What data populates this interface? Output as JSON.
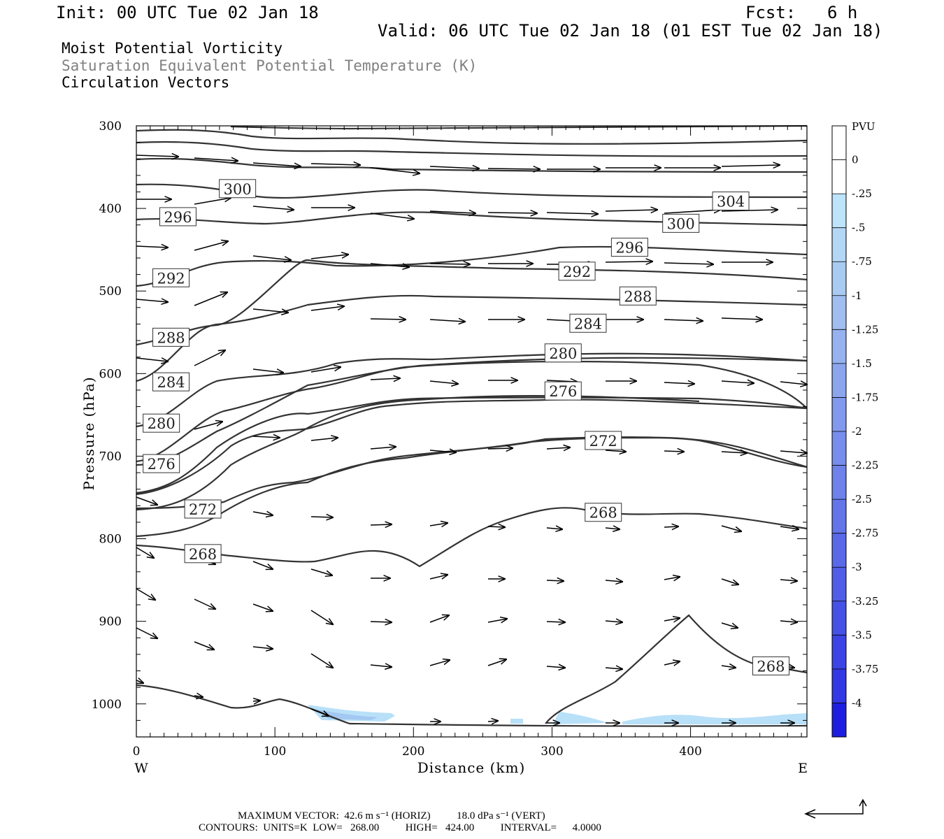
{
  "header": {
    "init": "Init: 00 UTC Tue 02 Jan 18",
    "fcst_label": "Fcst:",
    "fcst_value": "6 h",
    "valid": "Valid: 06 UTC Tue 02 Jan 18 (01 EST Tue 02 Jan 18)"
  },
  "titles": {
    "line1": "Moist Potential Vorticity",
    "line2": "Saturation Equivalent Potential Temperature (K)",
    "line3": "Circulation Vectors"
  },
  "colors": {
    "contour": "#333333",
    "pv_fill_light": "#b8e0f8",
    "pv_fill_mid": "#9fc4f0"
  },
  "chart_data": {
    "type": "cross-section",
    "xlabel": "Distance (km)",
    "ylabel": "Pressure (hPa)",
    "xlim": [
      0,
      484
    ],
    "ylim": [
      1040,
      300
    ],
    "x_ticks": [
      0,
      100,
      200,
      300,
      400
    ],
    "y_ticks": [
      300,
      400,
      500,
      600,
      700,
      800,
      900,
      1000
    ],
    "x_left_label": "W",
    "x_right_label": "E",
    "contour_labels": [
      {
        "text": "300",
        "x": 73,
        "p": 376
      },
      {
        "text": "296",
        "x": 30,
        "p": 410
      },
      {
        "text": "304",
        "x": 429,
        "p": 391
      },
      {
        "text": "300",
        "x": 393,
        "p": 418
      },
      {
        "text": "296",
        "x": 356,
        "p": 447
      },
      {
        "text": "292",
        "x": 25,
        "p": 484
      },
      {
        "text": "292",
        "x": 318,
        "p": 476
      },
      {
        "text": "288",
        "x": 362,
        "p": 506
      },
      {
        "text": "284",
        "x": 326,
        "p": 539
      },
      {
        "text": "288",
        "x": 25,
        "p": 556
      },
      {
        "text": "280",
        "x": 308,
        "p": 575
      },
      {
        "text": "284",
        "x": 25,
        "p": 610
      },
      {
        "text": "276",
        "x": 308,
        "p": 621
      },
      {
        "text": "280",
        "x": 18,
        "p": 660
      },
      {
        "text": "272",
        "x": 337,
        "p": 681
      },
      {
        "text": "276",
        "x": 18,
        "p": 709
      },
      {
        "text": "268",
        "x": 337,
        "p": 768
      },
      {
        "text": "272",
        "x": 48,
        "p": 764
      },
      {
        "text": "268",
        "x": 48,
        "p": 818
      },
      {
        "text": "268",
        "x": 458,
        "p": 954
      }
    ],
    "colorbar": {
      "title": "PVU",
      "levels": [
        "0",
        "-.25",
        "-.5",
        "-.75",
        "-1",
        "-1.25",
        "-1.5",
        "-1.75",
        "-2",
        "-2.25",
        "-2.5",
        "-2.75",
        "-3",
        "-3.25",
        "-3.5",
        "-3.75",
        "-4"
      ],
      "colors": [
        "#ffffff",
        "#ffffff",
        "#bde4fa",
        "#b3d7f5",
        "#a9cbf1",
        "#a0bff0",
        "#96b3ef",
        "#8ca6ee",
        "#829aed",
        "#788eec",
        "#6e82ea",
        "#6475e9",
        "#5a69e8",
        "#505de7",
        "#4651e6",
        "#3c44e5",
        "#3238e4",
        "#1e1ee0"
      ]
    }
  },
  "footer": {
    "max_vector": "MAXIMUM VECTOR:  42.6 m s⁻¹ (HORIZ)          18.0 dPa s⁻¹ (VERT)",
    "contours": "CONTOURS:  UNITS=K  LOW=   268.00          HIGH=   424.00          INTERVAL=      4.0000"
  }
}
